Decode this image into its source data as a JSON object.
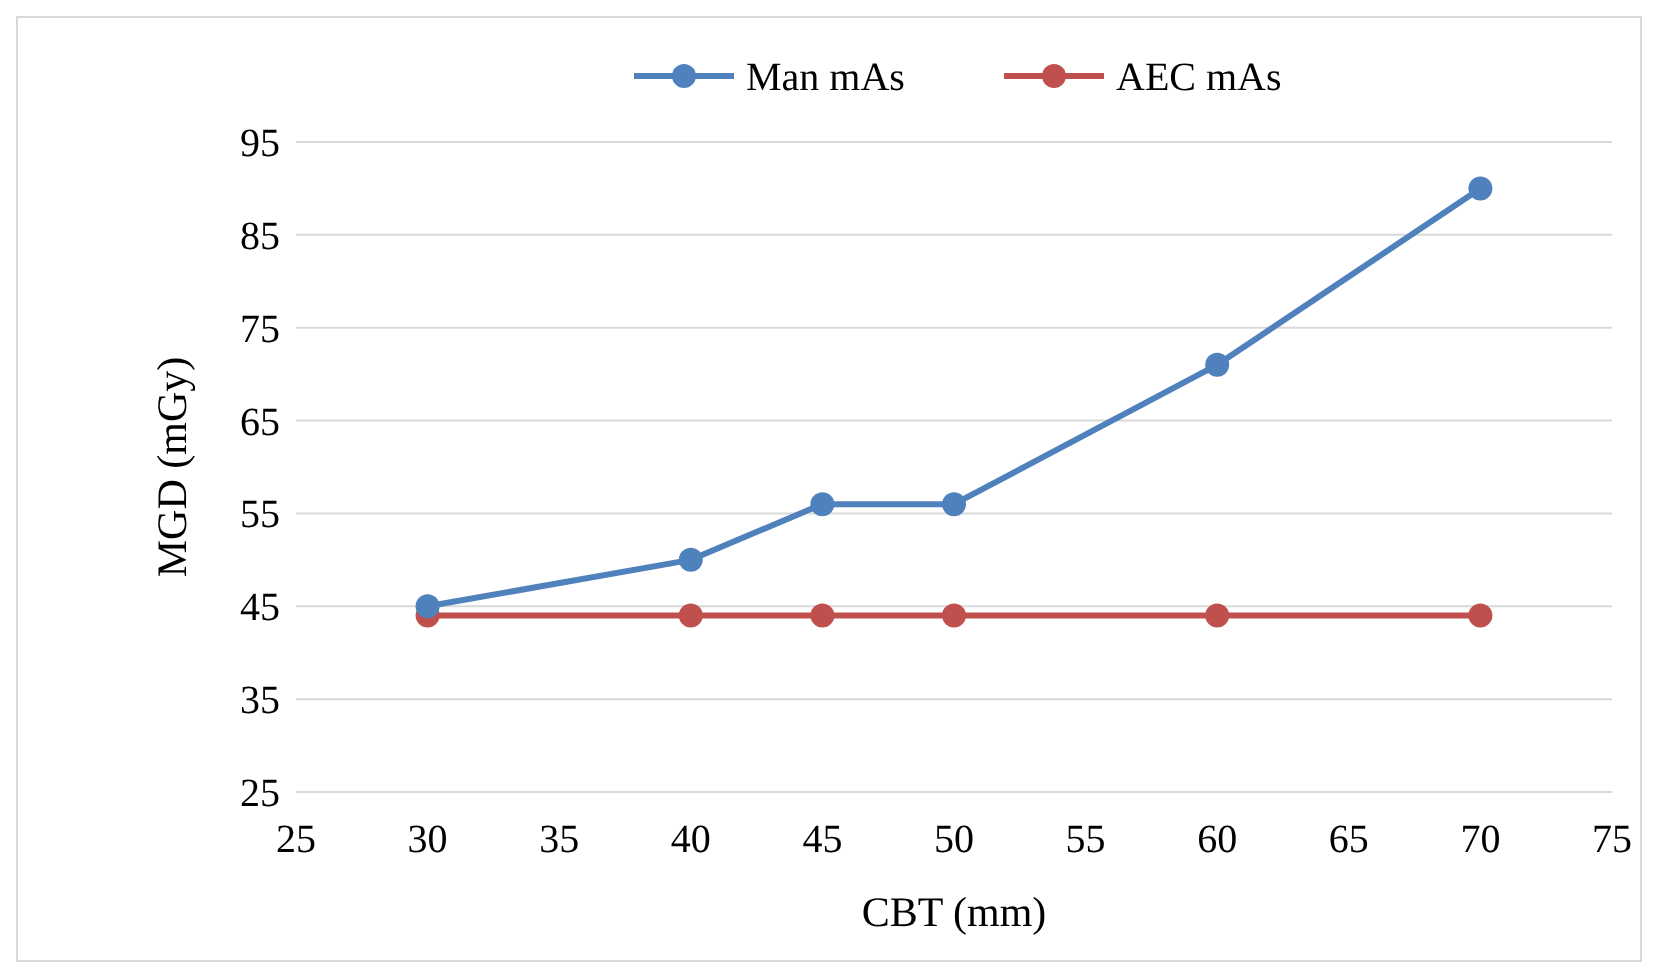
{
  "chart_data": {
    "type": "line",
    "xlabel": "CBT (mm)",
    "ylabel": "MGD (mGy)",
    "x": [
      30,
      40,
      45,
      50,
      60,
      70
    ],
    "series": [
      {
        "name": "Man mAs",
        "color": "#4f81bd",
        "values": [
          45,
          50,
          56,
          56,
          71,
          90
        ]
      },
      {
        "name": "AEC mAs",
        "color": "#c0504d",
        "values": [
          44,
          44,
          44,
          44,
          44,
          44
        ]
      }
    ],
    "xlim": [
      25,
      75
    ],
    "xticks": [
      25,
      30,
      35,
      40,
      45,
      50,
      55,
      60,
      65,
      70,
      75
    ],
    "ylim": [
      25,
      95
    ],
    "yticks": [
      25,
      35,
      45,
      55,
      65,
      75,
      85,
      95
    ],
    "grid": "y",
    "legend": "top",
    "marker": "circle",
    "line_style": "solid"
  }
}
